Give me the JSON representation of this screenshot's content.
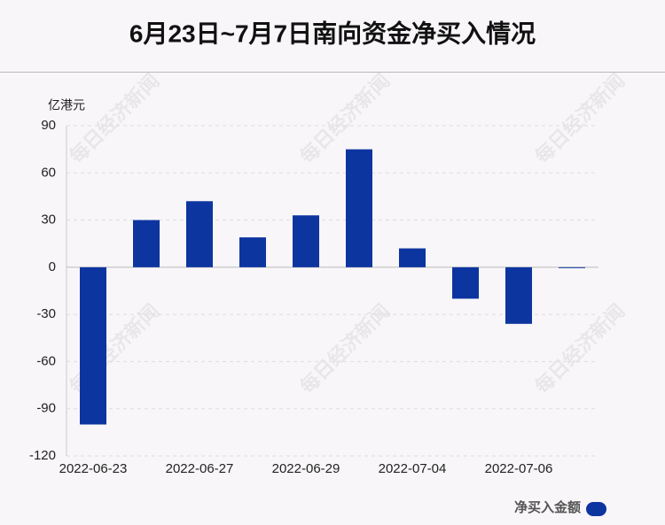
{
  "chart_data": {
    "type": "bar",
    "title": "6月23日~7月7日南向资金净买入情况",
    "y_label": "亿港元",
    "watermark": "每日经济新闻",
    "categories": [
      "2022-06-23",
      null,
      "2022-06-27",
      null,
      "2022-06-29",
      null,
      "2022-07-04",
      null,
      "2022-07-06",
      null
    ],
    "series": [
      {
        "name": "净买入金额",
        "color": "#0d35a0",
        "values": [
          -100,
          30,
          42,
          19,
          33,
          75,
          12,
          -20,
          -36,
          -0.5
        ]
      }
    ],
    "ylim": [
      -120,
      90
    ],
    "yticks": [
      -120,
      -90,
      -60,
      -30,
      0,
      30,
      60,
      90
    ],
    "grid": true
  }
}
